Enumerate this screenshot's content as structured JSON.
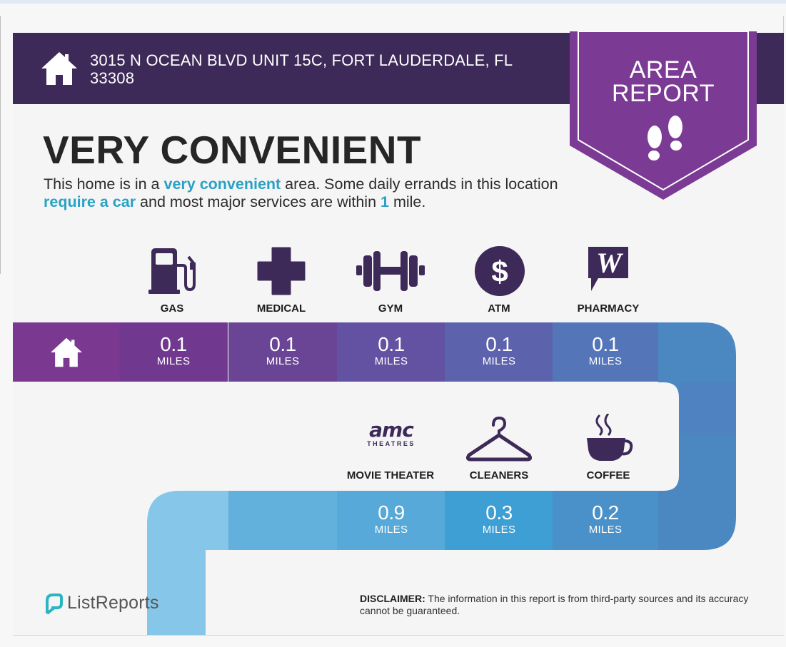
{
  "header": {
    "address": "3015 N OCEAN BLVD UNIT 15C, FORT LAUDERDALE, FL 33308",
    "home_icon": "house-icon"
  },
  "badge": {
    "line1": "AREA",
    "line2": "REPORT",
    "icon": "footprints-icon",
    "color": "#7b3a94"
  },
  "headline": "VERY CONVENIENT",
  "description": {
    "part1": "This home is in a ",
    "highlight1": "very convenient",
    "part2": " area. Some daily errands in this location ",
    "highlight2": "require a car",
    "part3": " and most major services are within ",
    "highlight3": "1",
    "part4": " mile."
  },
  "services_top": [
    {
      "label": "GAS",
      "distance": "0.1",
      "unit": "MILES",
      "icon": "gas-pump-icon"
    },
    {
      "label": "MEDICAL",
      "distance": "0.1",
      "unit": "MILES",
      "icon": "medical-cross-icon"
    },
    {
      "label": "GYM",
      "distance": "0.1",
      "unit": "MILES",
      "icon": "dumbbell-icon"
    },
    {
      "label": "ATM",
      "distance": "0.1",
      "unit": "MILES",
      "icon": "dollar-icon"
    },
    {
      "label": "PHARMACY",
      "distance": "0.1",
      "unit": "MILES",
      "icon": "walgreens-logo-icon"
    }
  ],
  "services_bottom": [
    {
      "label": "MOVIE THEATER",
      "distance": "0.9",
      "unit": "MILES",
      "icon": "amc-logo-icon",
      "logo_text": "amc",
      "logo_sub": "THEATRES"
    },
    {
      "label": "CLEANERS",
      "distance": "0.3",
      "unit": "MILES",
      "icon": "hanger-icon"
    },
    {
      "label": "COFFEE",
      "distance": "0.2",
      "unit": "MILES",
      "icon": "coffee-cup-icon"
    }
  ],
  "footer": {
    "brand": "ListReports",
    "brand_icon": "listreports-logo-icon",
    "disclaimer_label": "DISCLAIMER:",
    "disclaimer_text": " The information in this report is from third-party sources and its accuracy cannot be guaranteed."
  },
  "colors": {
    "header": "#3d2a58",
    "icon": "#3d2a58",
    "accent": "#2aa1c4"
  }
}
